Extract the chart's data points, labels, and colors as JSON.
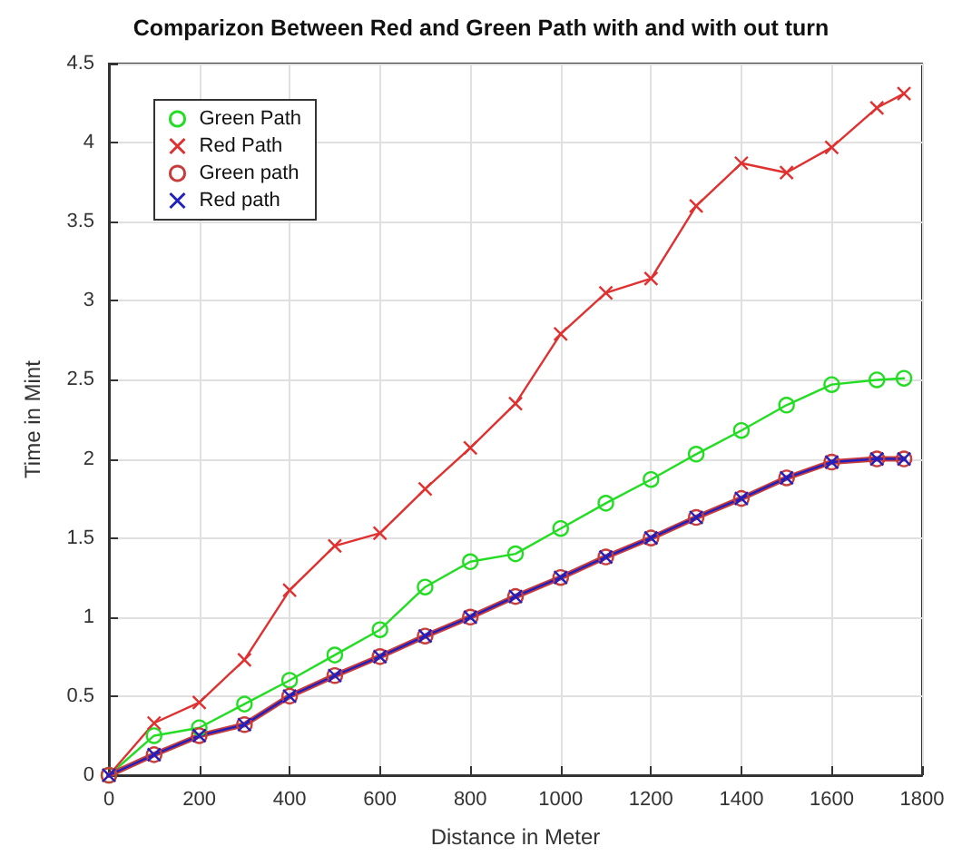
{
  "chart_data": {
    "type": "line",
    "title": "Comparizon Between Red and Green Path with and with out turn",
    "xlabel": "Distance in Meter",
    "ylabel": "Time in Mint",
    "x": [
      0,
      100,
      200,
      300,
      400,
      500,
      600,
      700,
      800,
      900,
      1000,
      1100,
      1200,
      1300,
      1400,
      1500,
      1600,
      1700,
      1760
    ],
    "series": [
      {
        "name": "Green Path",
        "color": "#22dd22",
        "marker": "circle",
        "values": [
          0,
          0.25,
          0.3,
          0.45,
          0.6,
          0.76,
          0.92,
          1.19,
          1.35,
          1.4,
          1.56,
          1.72,
          1.87,
          2.03,
          2.18,
          2.34,
          2.47,
          2.5,
          2.51
        ]
      },
      {
        "name": "Red Path",
        "color": "#e03030",
        "marker": "cross",
        "values": [
          0,
          0.33,
          0.46,
          0.73,
          1.17,
          1.45,
          1.53,
          1.81,
          2.07,
          2.35,
          2.79,
          3.05,
          3.14,
          3.6,
          3.87,
          3.81,
          3.97,
          4.22,
          4.31
        ]
      },
      {
        "name": "Green path",
        "color": "#c83c3c",
        "marker": "circle",
        "values": [
          0,
          0.13,
          0.25,
          0.32,
          0.5,
          0.63,
          0.75,
          0.88,
          1,
          1.13,
          1.25,
          1.38,
          1.5,
          1.63,
          1.75,
          1.88,
          1.98,
          2,
          2
        ]
      },
      {
        "name": "Red path",
        "color": "#2020c0",
        "marker": "cross",
        "values": [
          0,
          0.13,
          0.25,
          0.32,
          0.5,
          0.63,
          0.75,
          0.88,
          1,
          1.13,
          1.25,
          1.38,
          1.5,
          1.63,
          1.75,
          1.88,
          1.98,
          2,
          2
        ]
      }
    ],
    "xlim": [
      0,
      1800
    ],
    "xticks": [
      0,
      200,
      400,
      600,
      800,
      1000,
      1200,
      1400,
      1600,
      1800
    ],
    "ylim": [
      0,
      4.5
    ],
    "yticks": [
      0,
      0.5,
      1,
      1.5,
      2,
      2.5,
      3,
      3.5,
      4,
      4.5
    ],
    "grid": true,
    "legend": "top left",
    "line_style": "solid"
  }
}
